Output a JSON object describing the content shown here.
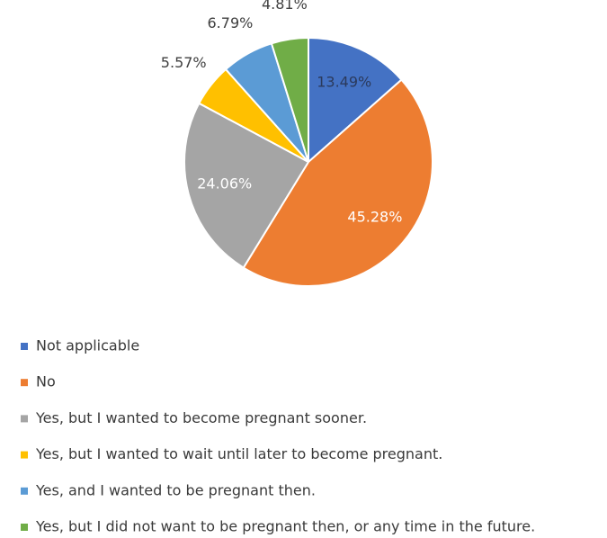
{
  "chart_data": {
    "type": "pie",
    "categories": [
      "Not applicable",
      "No",
      "Yes, but I wanted to become pregnant sooner.",
      "Yes, but I wanted to wait until later to become pregnant.",
      "Yes, and I wanted to be pregnant then.",
      "Yes, but I did not want to be pregnant then, or any time in the future."
    ],
    "values": [
      13.49,
      45.28,
      24.06,
      5.57,
      6.79,
      4.81
    ],
    "value_labels": [
      "13.49%",
      "45.28%",
      "24.06%",
      "5.57%",
      "6.79%",
      "4.81%"
    ],
    "colors": [
      "#4472c4",
      "#ed7d31",
      "#a5a5a5",
      "#ffc000",
      "#5b9bd5",
      "#70ad47"
    ],
    "label_colors": [
      "#2b3a5c",
      "#ffffff",
      "#ffffff",
      "#404040",
      "#404040",
      "#404040"
    ]
  }
}
